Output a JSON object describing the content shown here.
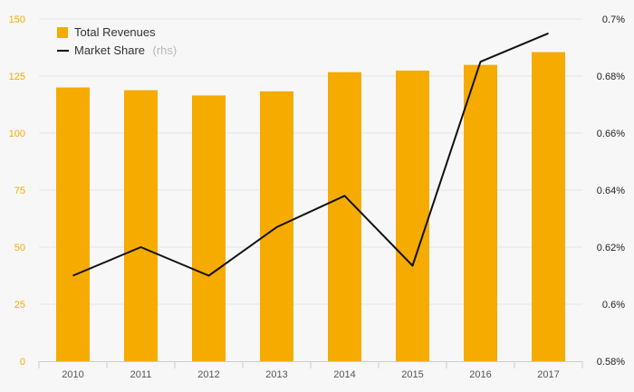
{
  "chart_data": {
    "type": "bar",
    "categories": [
      "2010",
      "2011",
      "2012",
      "2013",
      "2014",
      "2015",
      "2016",
      "2017"
    ],
    "series": [
      {
        "name": "Total Revenues",
        "kind": "bar",
        "axis": "left",
        "color": "#f5ab00",
        "values": [
          120,
          118.8,
          116.5,
          118.3,
          126.7,
          127.4,
          129.9,
          135.5
        ]
      },
      {
        "name": "Market Share",
        "legend_suffix": "(rhs)",
        "kind": "line",
        "axis": "right",
        "color": "#111111",
        "values": [
          0.61,
          0.62,
          0.61,
          0.627,
          0.638,
          0.6135,
          0.685,
          0.695
        ]
      }
    ],
    "y_left": {
      "ylim": [
        0,
        150
      ],
      "ticks": [
        0,
        25,
        50,
        75,
        100,
        125,
        150
      ],
      "tick_labels": [
        "0",
        "25",
        "50",
        "75",
        "100",
        "125",
        "150"
      ]
    },
    "y_right": {
      "ylim": [
        0.58,
        0.7
      ],
      "ticks": [
        0.58,
        0.6,
        0.62,
        0.64,
        0.66,
        0.68,
        0.7
      ],
      "tick_labels": [
        "0.58%",
        "0.6%",
        "0.62%",
        "0.64%",
        "0.66%",
        "0.68%",
        "0.7%"
      ]
    },
    "title": "",
    "xlabel": "",
    "ylabel": "",
    "grid": true,
    "legend_position": "top-left"
  }
}
